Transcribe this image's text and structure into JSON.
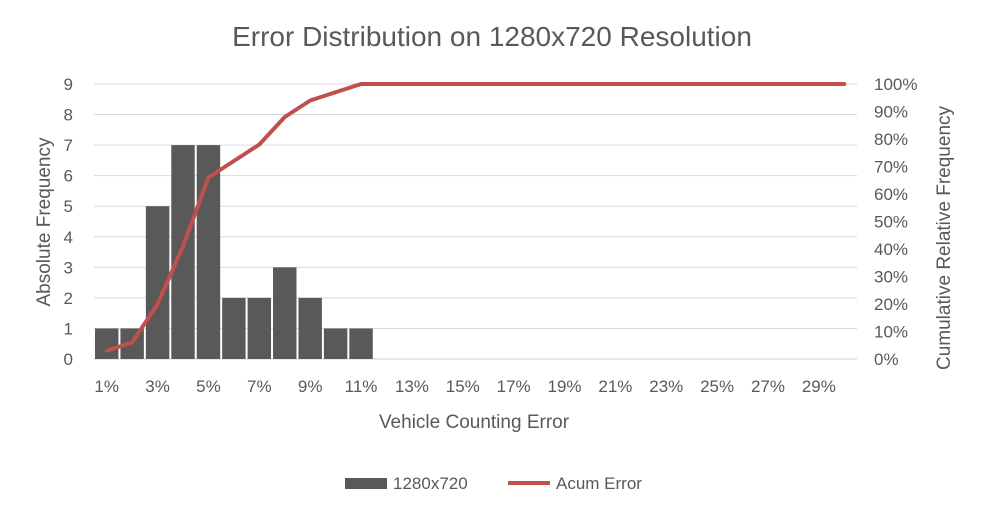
{
  "chart_data": {
    "type": "bar",
    "title": "Error Distribution on 1280x720 Resolution",
    "xlabel": "Vehicle Counting Error",
    "ylabel": "Absolute Frequency",
    "ylabel_right": "Cumulative Relative Frequency",
    "categories": [
      "1%",
      "2%",
      "3%",
      "4%",
      "5%",
      "6%",
      "7%",
      "8%",
      "9%",
      "10%",
      "11%",
      "12%",
      "13%",
      "14%",
      "15%",
      "16%",
      "17%",
      "18%",
      "19%",
      "20%",
      "21%",
      "22%",
      "23%",
      "24%",
      "25%",
      "26%",
      "27%",
      "28%",
      "29%",
      "30%"
    ],
    "x_tick_labels": [
      "1%",
      "3%",
      "5%",
      "7%",
      "9%",
      "11%",
      "13%",
      "15%",
      "17%",
      "19%",
      "21%",
      "23%",
      "25%",
      "27%",
      "29%"
    ],
    "ylim": [
      0,
      9
    ],
    "y_ticks": [
      "0",
      "1",
      "2",
      "3",
      "4",
      "5",
      "6",
      "7",
      "8",
      "9"
    ],
    "y2lim": [
      0,
      1
    ],
    "y2_ticks": [
      "0%",
      "10%",
      "20%",
      "30%",
      "40%",
      "50%",
      "60%",
      "70%",
      "80%",
      "90%",
      "100%"
    ],
    "series": [
      {
        "name": "1280x720",
        "kind": "bar",
        "color": "#595959",
        "values": [
          1,
          1,
          5,
          7,
          7,
          2,
          2,
          3,
          2,
          1,
          1,
          0,
          0,
          0,
          0,
          0,
          0,
          0,
          0,
          0,
          0,
          0,
          0,
          0,
          0,
          0,
          0,
          0,
          0,
          0
        ]
      },
      {
        "name": "Acum Error",
        "kind": "line",
        "axis": "right",
        "color": "#c0504d",
        "values": [
          0.03,
          0.06,
          0.2,
          0.41,
          0.66,
          0.72,
          0.78,
          0.88,
          0.94,
          0.97,
          1,
          1,
          1,
          1,
          1,
          1,
          1,
          1,
          1,
          1,
          1,
          1,
          1,
          1,
          1,
          1,
          1,
          1,
          1,
          1
        ]
      }
    ],
    "grid": true,
    "legend_position": "bottom"
  }
}
